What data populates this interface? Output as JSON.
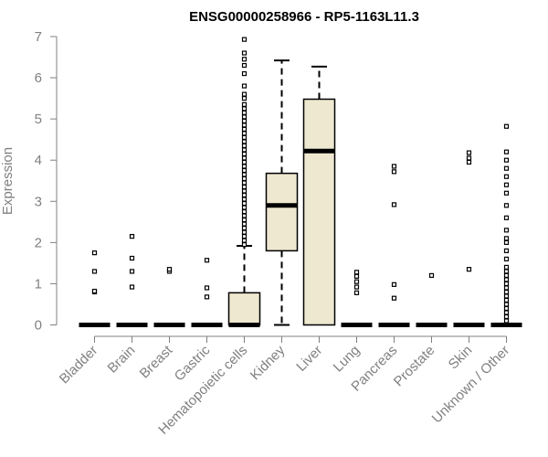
{
  "chart_data": {
    "type": "boxplot",
    "title": "ENSG00000258966 - RP5-1163L11.3",
    "xlabel": "",
    "ylabel": "Expression",
    "ylim": [
      0,
      7
    ],
    "yticks": [
      "0",
      "1",
      "2",
      "3",
      "4",
      "5",
      "6",
      "7"
    ],
    "grid": false,
    "legend": "none",
    "colors": {
      "box_fill": "#EEE8D0",
      "stroke": "#000000",
      "axis_text": "#808080"
    },
    "categories": [
      "Bladder",
      "Brain",
      "Breast",
      "Gastric",
      "Hematopoietic cells",
      "Kidney",
      "Liver",
      "Lung",
      "Pancreas",
      "Prostate",
      "Skin",
      "Unknown / Other"
    ],
    "boxes": [
      {
        "min": 0,
        "q1": 0,
        "median": 0,
        "q3": 0,
        "max": 0,
        "outliers": [
          0.8,
          0.82,
          1.3,
          1.75
        ]
      },
      {
        "min": 0,
        "q1": 0,
        "median": 0,
        "q3": 0,
        "max": 0,
        "outliers": [
          0.92,
          1.3,
          1.62,
          2.15
        ]
      },
      {
        "min": 0,
        "q1": 0,
        "median": 0,
        "q3": 0,
        "max": 0,
        "outliers": [
          1.3,
          1.35
        ]
      },
      {
        "min": 0,
        "q1": 0,
        "median": 0,
        "q3": 0,
        "max": 0,
        "outliers": [
          0.68,
          0.9,
          1.57
        ]
      },
      {
        "min": 0,
        "q1": 0,
        "median": 0,
        "q3": 0.78,
        "max": 1.92,
        "outliers": [
          1.95,
          2.05,
          2.15,
          2.25,
          2.35,
          2.45,
          2.55,
          2.65,
          2.75,
          2.85,
          2.95,
          3.05,
          3.15,
          3.25,
          3.35,
          3.45,
          3.55,
          3.65,
          3.75,
          3.85,
          3.95,
          4.05,
          4.15,
          4.25,
          4.35,
          4.45,
          4.55,
          4.65,
          4.75,
          4.85,
          4.95,
          5.05,
          5.15,
          5.25,
          5.35,
          5.5,
          5.6,
          5.8,
          6.1,
          6.3,
          6.45,
          6.6,
          6.93
        ]
      },
      {
        "min": 0,
        "q1": 1.8,
        "median": 2.9,
        "q3": 3.68,
        "max": 6.42,
        "outliers": []
      },
      {
        "min": 0,
        "q1": 0,
        "median": 4.22,
        "q3": 5.48,
        "max": 6.27,
        "outliers": []
      },
      {
        "min": 0,
        "q1": 0,
        "median": 0,
        "q3": 0,
        "max": 0,
        "outliers": [
          0.78,
          0.92,
          1.05,
          1.18,
          1.28
        ]
      },
      {
        "min": 0,
        "q1": 0,
        "median": 0,
        "q3": 0,
        "max": 0,
        "outliers": [
          0.65,
          0.98,
          2.92,
          3.72,
          3.85
        ]
      },
      {
        "min": 0,
        "q1": 0,
        "median": 0,
        "q3": 0,
        "max": 0,
        "outliers": [
          1.2
        ]
      },
      {
        "min": 0,
        "q1": 0,
        "median": 0,
        "q3": 0,
        "max": 0,
        "outliers": [
          1.35,
          3.95,
          4.05,
          4.18
        ]
      },
      {
        "min": 0,
        "q1": 0,
        "median": 0,
        "q3": 0,
        "max": 0,
        "outliers": [
          0.1,
          0.2,
          0.3,
          0.4,
          0.5,
          0.6,
          0.7,
          0.8,
          0.9,
          1.0,
          1.1,
          1.2,
          1.3,
          1.4,
          1.6,
          1.8,
          2.0,
          2.1,
          2.3,
          2.6,
          2.9,
          3.2,
          3.4,
          3.6,
          3.8,
          4.0,
          4.2,
          4.82
        ]
      }
    ]
  }
}
